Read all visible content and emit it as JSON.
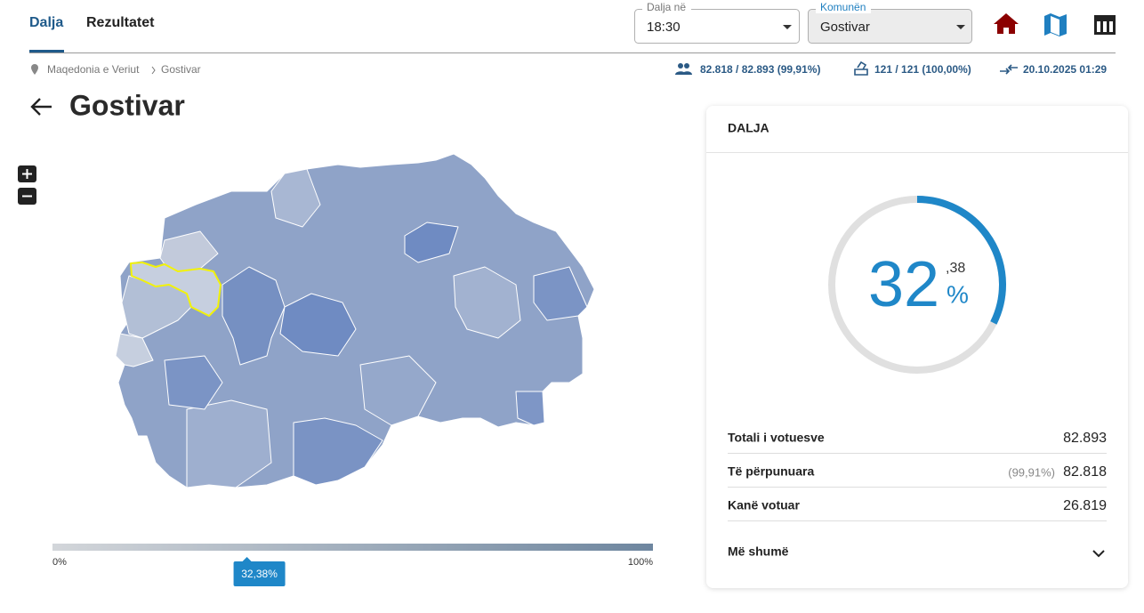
{
  "header": {
    "tabs": [
      "Dalja",
      "Rezultatet"
    ],
    "time_select": {
      "label": "Dalja në",
      "value": "18:30"
    },
    "municipality_select": {
      "label": "Komunën",
      "value": "Gostivar"
    }
  },
  "breadcrumb": {
    "items": [
      "Maqedonia e Veriut",
      "Gostivar"
    ]
  },
  "stats": {
    "processed": "82.818 / 82.893 (99,91%)",
    "stations": "121 / 121 (100,00%)",
    "updated": "20.10.2025 01:29"
  },
  "title": "Gostivar",
  "legend": {
    "min_label": "0%",
    "max_label": "100%",
    "marker_label": "32,38%"
  },
  "card": {
    "heading": "DALJA",
    "turnout": {
      "value": 32.38,
      "whole": "32",
      "decimal": ",38",
      "unit": "%"
    },
    "rows": [
      {
        "label": "Totali i votuesve",
        "value": "82.893"
      },
      {
        "label": "Të përpunuara",
        "note": "(99,91%)",
        "value": "82.818"
      },
      {
        "label": "Kanë votuar",
        "value": "26.819"
      }
    ],
    "more": "Më shumë"
  }
}
